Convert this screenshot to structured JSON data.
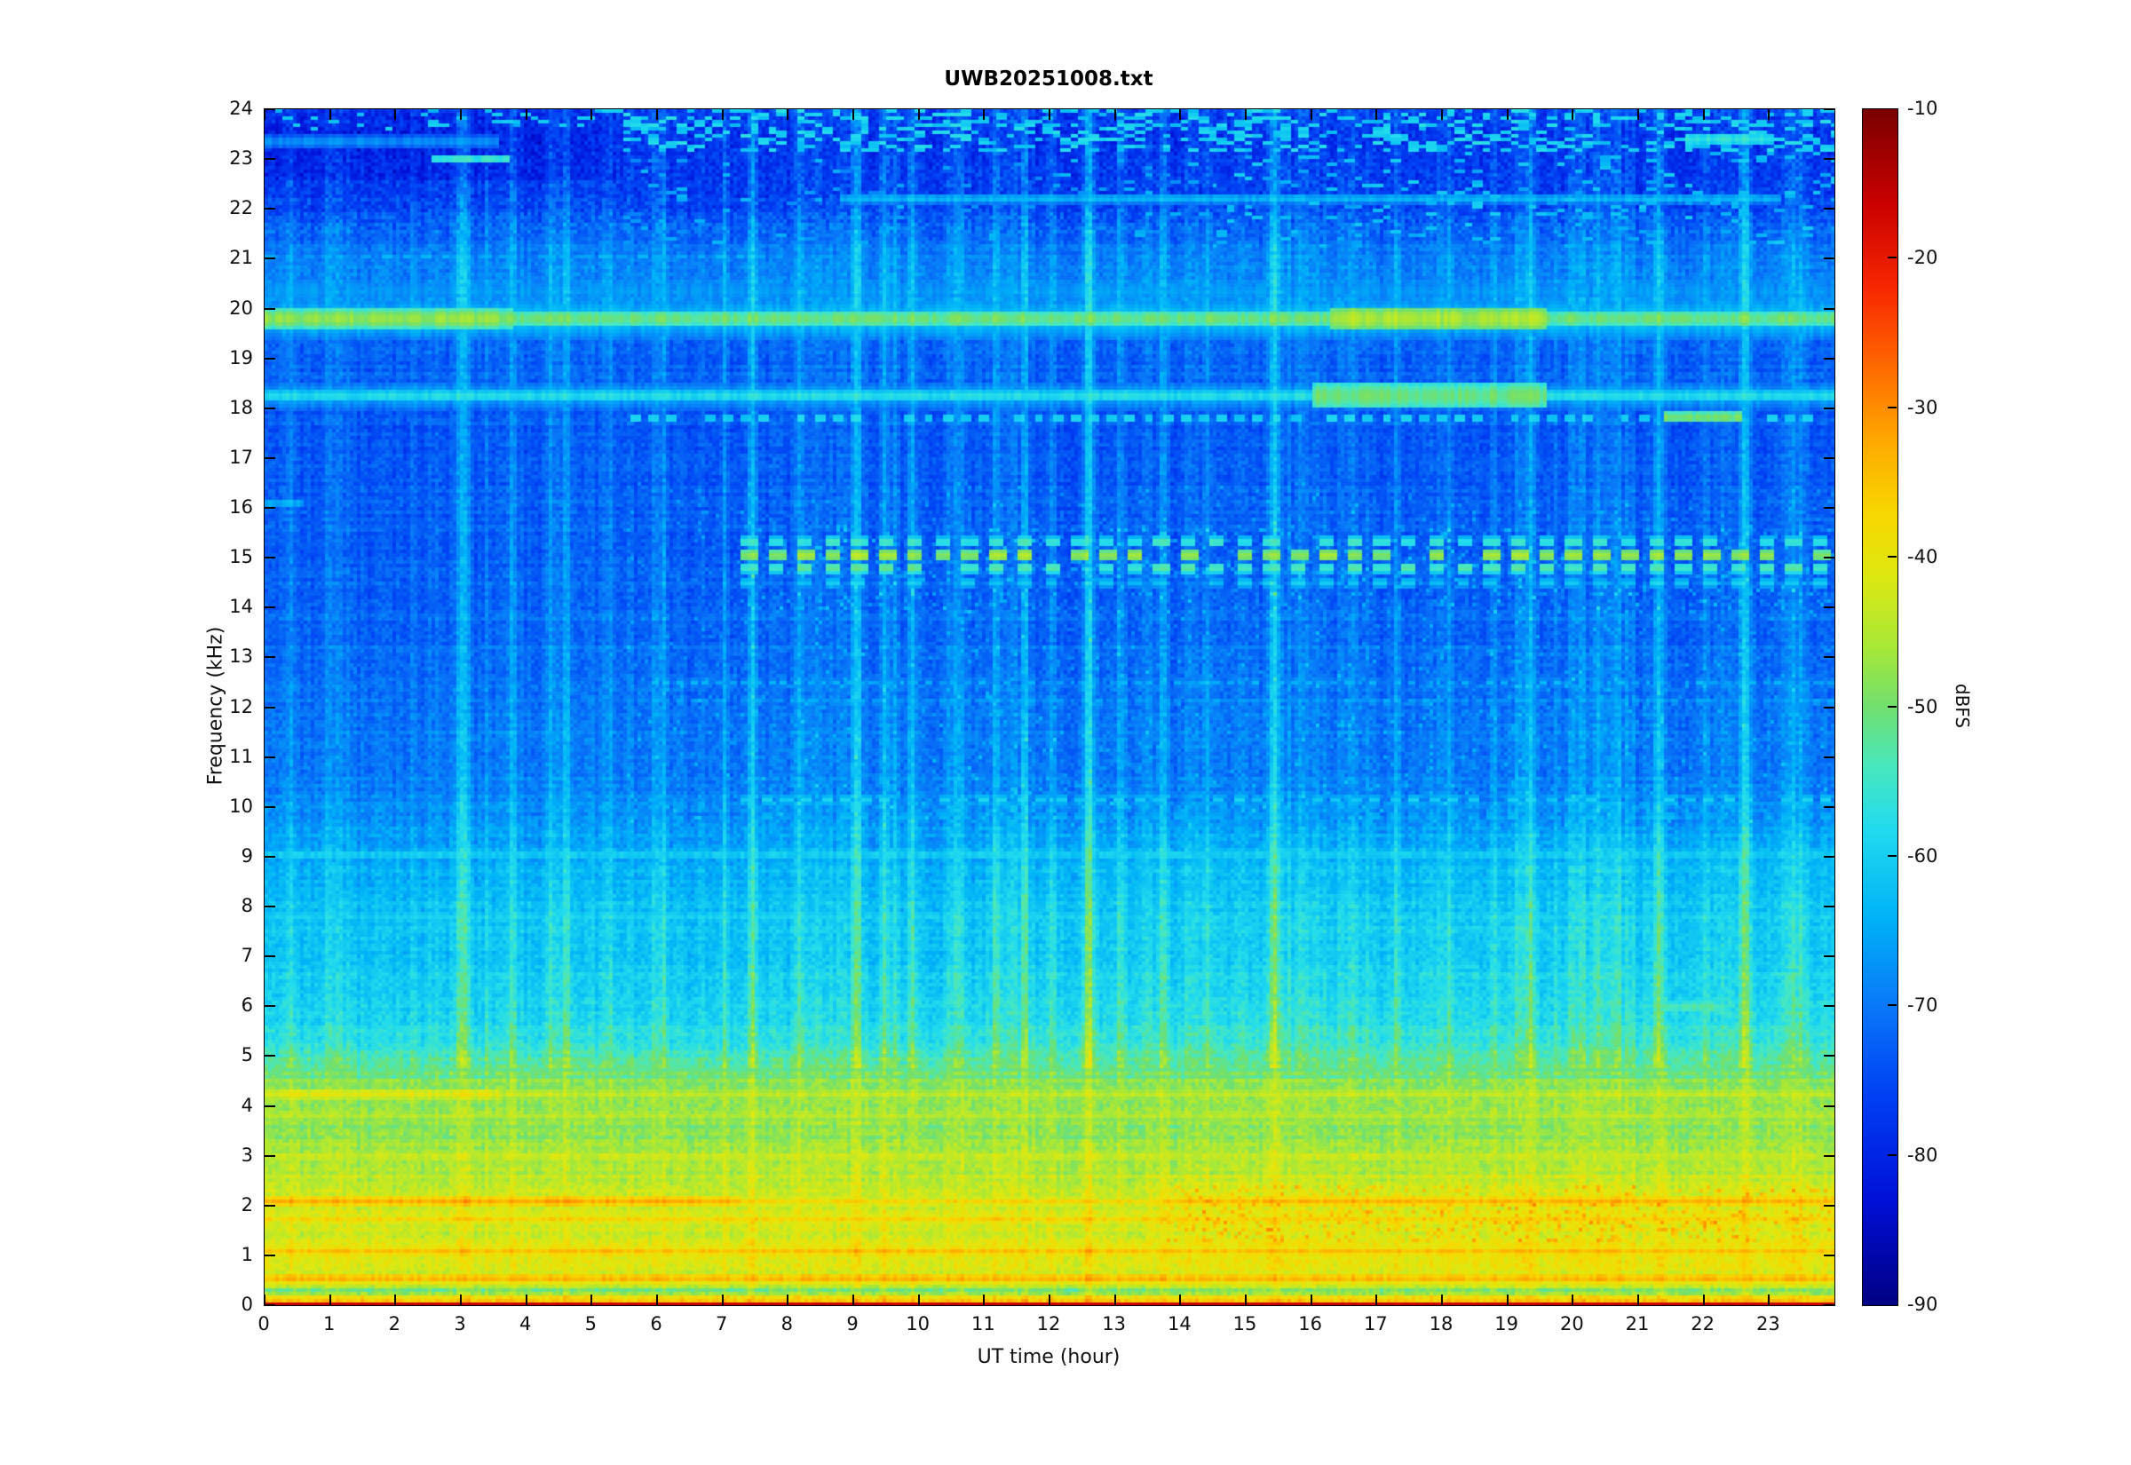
{
  "title": "UWB20251008.txt",
  "chart_data": {
    "type": "heatmap",
    "title": "UWB20251008.txt",
    "xlabel": "UT time (hour)",
    "ylabel": "Frequency (kHz)",
    "x_range": [
      0,
      24
    ],
    "y_range": [
      0,
      24
    ],
    "x_ticks": [
      0,
      1,
      2,
      3,
      4,
      5,
      6,
      7,
      8,
      9,
      10,
      11,
      12,
      13,
      14,
      15,
      16,
      17,
      18,
      19,
      20,
      21,
      22,
      23
    ],
    "y_ticks": [
      0,
      1,
      2,
      3,
      4,
      5,
      6,
      7,
      8,
      9,
      10,
      11,
      12,
      13,
      14,
      15,
      16,
      17,
      18,
      19,
      20,
      21,
      22,
      23,
      24
    ],
    "value_unit": "dBFS",
    "value_range": [
      -90,
      -10
    ],
    "colorbar": {
      "label": "dBFS",
      "ticks": [
        -10,
        -20,
        -30,
        -40,
        -50,
        -60,
        -70,
        -80,
        -90
      ]
    },
    "colormap_stops": [
      [
        -90,
        "#000082"
      ],
      [
        -83,
        "#0010d8"
      ],
      [
        -76,
        "#0040f4"
      ],
      [
        -70,
        "#0a78f8"
      ],
      [
        -64,
        "#00b4f8"
      ],
      [
        -58,
        "#22dcee"
      ],
      [
        -54,
        "#48e8c0"
      ],
      [
        -50,
        "#70e070"
      ],
      [
        -46,
        "#a8e838"
      ],
      [
        -41,
        "#e0e810"
      ],
      [
        -37,
        "#f8d800"
      ],
      [
        -32,
        "#ffa800"
      ],
      [
        -27,
        "#ff6800"
      ],
      [
        -22,
        "#f82800"
      ],
      [
        -16,
        "#c80000"
      ],
      [
        -10,
        "#7a0000"
      ]
    ],
    "background_profile": [
      [
        0.08,
        -37
      ],
      [
        0.18,
        -39
      ],
      [
        0.28,
        -52
      ],
      [
        0.45,
        -42
      ],
      [
        0.9,
        -42
      ],
      [
        1.6,
        -43
      ],
      [
        2.4,
        -45
      ],
      [
        3.1,
        -46
      ],
      [
        3.6,
        -49
      ],
      [
        4.1,
        -46
      ],
      [
        4.6,
        -50
      ],
      [
        5.2,
        -57
      ],
      [
        6.0,
        -60
      ],
      [
        7.0,
        -62
      ],
      [
        8.0,
        -63
      ],
      [
        9.0,
        -65
      ],
      [
        9.8,
        -68
      ],
      [
        10.5,
        -70
      ],
      [
        12,
        -71
      ],
      [
        13.5,
        -72
      ],
      [
        15,
        -73
      ],
      [
        17,
        -74
      ],
      [
        18.8,
        -73
      ],
      [
        19.4,
        -72
      ],
      [
        20.1,
        -69
      ],
      [
        21.0,
        -70
      ],
      [
        21.6,
        -73
      ],
      [
        22.3,
        -77
      ],
      [
        23.2,
        -78
      ],
      [
        24,
        -77
      ]
    ],
    "horizontal_lines": [
      {
        "f": 19.8,
        "hw": 0.4,
        "db": -63,
        "t0": 0,
        "t1": 24,
        "style": "solid"
      },
      {
        "f": 19.8,
        "hw": 0.16,
        "db": -51,
        "t0": 0,
        "t1": 24,
        "style": "solid"
      },
      {
        "f": 19.8,
        "hw": 0.18,
        "db": -48,
        "t0": 0,
        "t1": 3.8,
        "style": "solid"
      },
      {
        "f": 19.8,
        "hw": 0.22,
        "db": -46,
        "t0": 16.3,
        "t1": 19.6,
        "style": "solid"
      },
      {
        "f": 18.25,
        "hw": 0.3,
        "db": -66,
        "t0": 0,
        "t1": 24,
        "style": "solid"
      },
      {
        "f": 18.25,
        "hw": 0.12,
        "db": -58,
        "t0": 0,
        "t1": 24,
        "style": "solid"
      },
      {
        "f": 18.25,
        "hw": 0.26,
        "db": -51,
        "t0": 16,
        "t1": 19.6,
        "style": "solid"
      },
      {
        "f": 17.8,
        "hw": 0.1,
        "db": -60,
        "t0": 5.6,
        "t1": 24,
        "style": "dashed",
        "period": 0.28,
        "duty": 0.55
      },
      {
        "f": 17.82,
        "hw": 0.12,
        "db": -50,
        "t0": 21.4,
        "t1": 22.6,
        "style": "solid"
      },
      {
        "f": 22.2,
        "hw": 0.09,
        "db": -64,
        "t0": 8.8,
        "t1": 23.2,
        "style": "solid"
      },
      {
        "f": 15.32,
        "hw": 0.1,
        "db": -56,
        "t0": 7.3,
        "t1": 24,
        "style": "dashed",
        "period": 0.42,
        "duty": 0.55
      },
      {
        "f": 15.05,
        "hw": 0.12,
        "db": -48,
        "t0": 7.3,
        "t1": 24,
        "style": "dashed",
        "period": 0.42,
        "duty": 0.6
      },
      {
        "f": 14.8,
        "hw": 0.1,
        "db": -54,
        "t0": 7.3,
        "t1": 24,
        "style": "dashed",
        "period": 0.42,
        "duty": 0.55
      },
      {
        "f": 14.5,
        "hw": 0.09,
        "db": -62,
        "t0": 7.3,
        "t1": 24,
        "style": "dashed",
        "period": 0.42,
        "duty": 0.5
      },
      {
        "f": 12.5,
        "hw": 0.08,
        "db": -65,
        "t0": 5.7,
        "t1": 24,
        "style": "dashed",
        "period": 0.2,
        "duty": 0.5
      },
      {
        "f": 12.12,
        "hw": 0.08,
        "db": -66,
        "t0": 5.7,
        "t1": 24,
        "style": "dashed",
        "period": 0.2,
        "duty": 0.5
      },
      {
        "f": 10.15,
        "hw": 0.09,
        "db": -61,
        "t0": 7.3,
        "t1": 24,
        "style": "dashed",
        "period": 0.3,
        "duty": 0.55
      },
      {
        "f": 9.82,
        "hw": 0.08,
        "db": -64,
        "t0": 7.3,
        "t1": 24,
        "style": "dashed",
        "period": 0.3,
        "duty": 0.5
      },
      {
        "f": 9.05,
        "hw": 0.1,
        "db": -60,
        "t0": 0,
        "t1": 24,
        "style": "solid"
      },
      {
        "f": 8.35,
        "hw": 0.08,
        "db": -63,
        "t0": 0,
        "t1": 24,
        "style": "solid"
      },
      {
        "f": 7.82,
        "hw": 0.1,
        "db": -60,
        "t0": 0,
        "t1": 24,
        "style": "solid"
      },
      {
        "f": 6.0,
        "hw": 0.09,
        "db": -58,
        "t0": 5.5,
        "t1": 24,
        "style": "dashed",
        "period": 0.22,
        "duty": 0.5
      },
      {
        "f": 6.0,
        "hw": 0.12,
        "db": -53,
        "t0": 21.3,
        "t1": 22.3,
        "style": "solid"
      },
      {
        "f": 23.0,
        "hw": 0.1,
        "db": -56,
        "t0": 2.55,
        "t1": 3.75,
        "style": "solid"
      },
      {
        "f": 23.35,
        "hw": 0.13,
        "db": -68,
        "t0": 0,
        "t1": 3.6,
        "style": "solid"
      },
      {
        "f": 23.4,
        "hw": 0.12,
        "db": -57,
        "t0": 21.7,
        "t1": 23.1,
        "style": "solid"
      },
      {
        "f": 21.05,
        "hw": 0.08,
        "db": -65,
        "t0": 0,
        "t1": 8,
        "style": "dashed",
        "period": 0.3,
        "duty": 0.5
      },
      {
        "f": 20.35,
        "hw": 0.3,
        "db": -67,
        "t0": 0,
        "t1": 24,
        "style": "solid"
      },
      {
        "f": 16.1,
        "hw": 0.08,
        "db": -64,
        "t0": 0,
        "t1": 0.6,
        "style": "solid"
      },
      {
        "f": 0.25,
        "hw": 0.1,
        "db": -56,
        "t0": 0,
        "t1": 24,
        "style": "dashed",
        "period": 0.3,
        "duty": 0.65
      },
      {
        "f": 0.55,
        "hw": 0.09,
        "db": -34,
        "t0": 0,
        "t1": 24,
        "style": "solid"
      },
      {
        "f": 1.1,
        "hw": 0.09,
        "db": -35,
        "t0": 0,
        "t1": 24,
        "style": "solid"
      },
      {
        "f": 1.75,
        "hw": 0.08,
        "db": -37,
        "t0": 0,
        "t1": 24,
        "style": "solid"
      },
      {
        "f": 2.1,
        "hw": 0.09,
        "db": -33,
        "t0": 0,
        "t1": 7.3,
        "style": "solid"
      },
      {
        "f": 2.1,
        "hw": 0.08,
        "db": -38,
        "t0": 7.3,
        "t1": 13.8,
        "style": "solid"
      },
      {
        "f": 2.1,
        "hw": 0.09,
        "db": -34,
        "t0": 13.8,
        "t1": 24,
        "style": "solid"
      },
      {
        "f": 3.0,
        "hw": 0.1,
        "db": -43,
        "t0": 0,
        "t1": 24,
        "style": "solid"
      },
      {
        "f": 3.8,
        "hw": 0.09,
        "db": -45,
        "t0": 0,
        "t1": 24,
        "style": "solid"
      },
      {
        "f": 4.25,
        "hw": 0.12,
        "db": -41,
        "t0": 0,
        "t1": 3.6,
        "style": "solid"
      },
      {
        "f": 4.25,
        "hw": 0.1,
        "db": -44,
        "t0": 3.6,
        "t1": 24,
        "style": "solid"
      },
      {
        "f": 4.75,
        "hw": 0.08,
        "db": -52,
        "t0": 0,
        "t1": 24,
        "style": "solid"
      }
    ],
    "vertical_streaks": [
      {
        "t": 0.35,
        "boost": 3.5,
        "w": 0.05
      },
      {
        "t": 1.0,
        "boost": 3,
        "w": 0.05
      },
      {
        "t": 2.3,
        "boost": 3,
        "w": 0.05
      },
      {
        "t": 3.4,
        "boost": 3.5,
        "w": 0.05
      },
      {
        "t": 4.63,
        "boost": 7,
        "w": 0.06
      },
      {
        "t": 5.2,
        "boost": 4,
        "w": 0.05
      },
      {
        "t": 6.1,
        "boost": 3.5,
        "w": 0.05
      },
      {
        "t": 7.45,
        "boost": 6,
        "w": 0.06
      },
      {
        "t": 8.2,
        "boost": 4,
        "w": 0.05
      },
      {
        "t": 9.05,
        "boost": 5,
        "w": 0.06
      },
      {
        "t": 9.9,
        "boost": 3.5,
        "w": 0.05
      },
      {
        "t": 11.2,
        "boost": 6,
        "w": 0.06
      },
      {
        "t": 12.05,
        "boost": 4.5,
        "w": 0.05
      },
      {
        "t": 12.6,
        "boost": 4,
        "w": 0.05
      },
      {
        "t": 13.15,
        "boost": 4,
        "w": 0.05
      },
      {
        "t": 13.75,
        "boost": 6,
        "w": 0.06
      },
      {
        "t": 14.4,
        "boost": 4,
        "w": 0.05
      },
      {
        "t": 15.42,
        "boost": 8,
        "w": 0.07
      },
      {
        "t": 16.1,
        "boost": 4,
        "w": 0.05
      },
      {
        "t": 17.3,
        "boost": 6,
        "w": 0.06
      },
      {
        "t": 18.1,
        "boost": 5,
        "w": 0.06
      },
      {
        "t": 18.8,
        "boost": 4,
        "w": 0.05
      },
      {
        "t": 19.35,
        "boost": 7,
        "w": 0.06
      },
      {
        "t": 20.15,
        "boost": 4.5,
        "w": 0.05
      },
      {
        "t": 20.7,
        "boost": 4,
        "w": 0.05
      },
      {
        "t": 21.3,
        "boost": 6,
        "w": 0.06
      },
      {
        "t": 22.0,
        "boost": 4,
        "w": 0.05
      },
      {
        "t": 22.65,
        "boost": 6,
        "w": 0.06
      },
      {
        "t": 23.35,
        "boost": 5,
        "w": 0.06
      }
    ],
    "regions": [
      {
        "type": "fill",
        "t0": 0,
        "t1": 24,
        "f0": 0,
        "f1": 0.1,
        "db": -16
      },
      {
        "type": "shade",
        "t0": 0,
        "t1": 5.4,
        "f0": 22.6,
        "f1": 24,
        "delta": -2.5
      },
      {
        "type": "shade",
        "t0": 11,
        "t1": 24,
        "f0": 5,
        "f1": 9.5,
        "delta": 1.2
      },
      {
        "type": "shade",
        "t0": 13.5,
        "t1": 24,
        "f0": 0.3,
        "f1": 2.6,
        "delta": 1.2
      },
      {
        "type": "row_dashes",
        "t0": 5.5,
        "t1": 24,
        "f0": 23.15,
        "f1": 24,
        "chance": 0.33,
        "db": -60,
        "unit": 0.14
      },
      {
        "type": "row_dashes",
        "t0": 0,
        "t1": 5.5,
        "f0": 23.55,
        "f1": 24,
        "chance": 0.14,
        "db": -62,
        "unit": 0.14
      },
      {
        "type": "row_dashes",
        "t0": 14.5,
        "t1": 24,
        "f0": 21.2,
        "f1": 23.2,
        "chance": 0.1,
        "db": -63,
        "unit": 0.14
      },
      {
        "type": "row_dashes",
        "t0": 5.5,
        "t1": 14.5,
        "f0": 21.3,
        "f1": 23.0,
        "chance": 0.05,
        "db": -66,
        "unit": 0.14
      },
      {
        "type": "dots",
        "t0": 13.8,
        "t1": 24,
        "f0": 1.3,
        "f1": 2.45,
        "chance": 0.2,
        "boost": 8
      },
      {
        "type": "dots",
        "t0": 5.5,
        "t1": 24,
        "f0": 9.6,
        "f1": 16.5,
        "chance": 0.06,
        "boost": 5
      },
      {
        "type": "dots",
        "t0": 7.3,
        "t1": 24,
        "f0": 13.9,
        "f1": 15.6,
        "chance": 0.12,
        "boost": 5
      }
    ],
    "noise": {
      "seed": 1337,
      "cell_sigma": 2.4,
      "column_sigma": 1.3,
      "row_sigma": 1.1,
      "extra_streaks": {
        "count": 130,
        "max_boost": 3.5,
        "min_w": 0.03,
        "max_w": 0.1
      }
    }
  }
}
